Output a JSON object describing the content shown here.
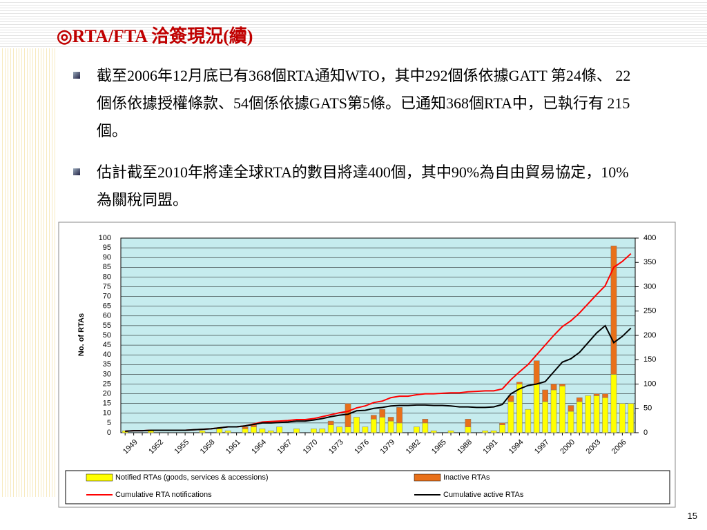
{
  "slide": {
    "title": "◎RTA/FTA 洽簽現況(續)",
    "bullets": [
      "截至2006年12月底已有368個RTA通知WTO，其中292個係依據GATT 第24條、 22 個係依據授權條款、54個係依據GATS第5條。已通知368個RTA中，已執行有 215個。",
      "估計截至2010年將達全球RTA的數目將達400個，其中90%為自由貿易協定，10%為關稅同盟。"
    ],
    "page_number": "15"
  },
  "chart_data": {
    "type": "bar-line",
    "y_label": "No. of RTAs",
    "categories": [
      null,
      "1949",
      null,
      null,
      "1952",
      null,
      null,
      "1955",
      null,
      null,
      "1958",
      null,
      null,
      "1961",
      null,
      null,
      "1964",
      null,
      null,
      "1967",
      null,
      null,
      "1970",
      null,
      null,
      "1973",
      null,
      null,
      "1976",
      null,
      null,
      "1979",
      null,
      null,
      "1982",
      null,
      null,
      "1985",
      null,
      null,
      "1988",
      null,
      null,
      "1991",
      null,
      null,
      "1994",
      null,
      null,
      "1997",
      null,
      null,
      "2000",
      null,
      null,
      "2003",
      null,
      null,
      "2006",
      null
    ],
    "series": [
      {
        "name": "Notified RTAs (goods, services & accessions)",
        "color": "#ffff00",
        "kind": "bar",
        "values": [
          1,
          0,
          0,
          1,
          0,
          0,
          0,
          0,
          0,
          1,
          0,
          2,
          1,
          0,
          2,
          3,
          2,
          1,
          3,
          0,
          2,
          0,
          2,
          2,
          4,
          3,
          3,
          8,
          3,
          7,
          8,
          6,
          5,
          0,
          3,
          5,
          1,
          0,
          1,
          0,
          3,
          0,
          1,
          1,
          4,
          16,
          25,
          12,
          25,
          16,
          22,
          24,
          11,
          16,
          19,
          19,
          18,
          30,
          15,
          15
        ]
      },
      {
        "name": "Inactive RTAs",
        "color": "#e8701a",
        "kind": "bar",
        "values": [
          0,
          0,
          0,
          0,
          0,
          0,
          0,
          0,
          0,
          0,
          0,
          0,
          0,
          0,
          1,
          1,
          0,
          0,
          0,
          0,
          0,
          0,
          0,
          0,
          2,
          0,
          12,
          0,
          0,
          2,
          4,
          2,
          8,
          0,
          0,
          2,
          0,
          0,
          0,
          0,
          4,
          0,
          0,
          0,
          1,
          3,
          1,
          0,
          12,
          6,
          3,
          1,
          3,
          2,
          0,
          1,
          2,
          66,
          0,
          0
        ]
      },
      {
        "name": "Cumulative RTA notifications",
        "color": "#ff0000",
        "kind": "line",
        "axis": "y2",
        "values": [
          3,
          4,
          4,
          5,
          5,
          5,
          5,
          5,
          6,
          7,
          8,
          10,
          12,
          12,
          14,
          18,
          22,
          23,
          24,
          25,
          27,
          27,
          29,
          33,
          37,
          41,
          44,
          51,
          55,
          62,
          65,
          72,
          75,
          75,
          78,
          80,
          80,
          81,
          82,
          82,
          84,
          85,
          86,
          86,
          90,
          109,
          125,
          140,
          160,
          180,
          200,
          218,
          230,
          246,
          265,
          284,
          302,
          340,
          352,
          368
        ]
      },
      {
        "name": "Cumulative active RTAs",
        "color": "#000000",
        "kind": "line",
        "axis": "y2",
        "values": [
          3,
          4,
          4,
          5,
          5,
          5,
          5,
          5,
          6,
          7,
          8,
          10,
          12,
          12,
          14,
          17,
          20,
          20,
          21,
          22,
          24,
          24,
          26,
          29,
          33,
          36,
          38,
          45,
          46,
          50,
          52,
          55,
          56,
          56,
          57,
          57,
          56,
          56,
          55,
          53,
          53,
          52,
          52,
          53,
          58,
          80,
          90,
          97,
          100,
          105,
          125,
          145,
          152,
          165,
          185,
          205,
          220,
          185,
          198,
          215
        ]
      }
    ],
    "ylim": [
      0,
      100
    ],
    "yticks": [
      0,
      5,
      10,
      15,
      20,
      25,
      30,
      35,
      40,
      45,
      50,
      55,
      60,
      65,
      70,
      75,
      80,
      85,
      90,
      95,
      100
    ],
    "y2lim": [
      0,
      400
    ],
    "y2ticks": [
      0,
      50,
      100,
      150,
      200,
      250,
      300,
      350,
      400
    ],
    "grid": true,
    "plot_color": "#c6ecee"
  }
}
